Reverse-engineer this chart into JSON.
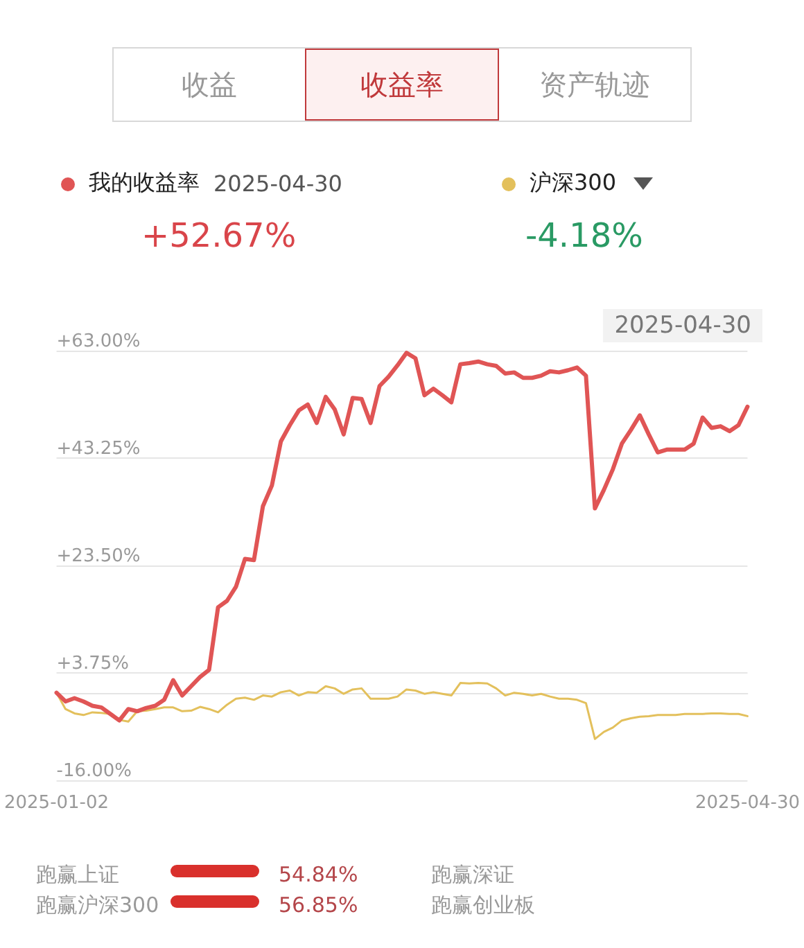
{
  "chart_data": {
    "type": "line",
    "categories": [
      "2025-01-02",
      null,
      null,
      null,
      null,
      null,
      null,
      null,
      null,
      null,
      null,
      null,
      null,
      null,
      null,
      null,
      null,
      null,
      null,
      null,
      null,
      null,
      null,
      null,
      null,
      null,
      null,
      null,
      null,
      null,
      null,
      null,
      null,
      null,
      null,
      null,
      null,
      null,
      null,
      null,
      null,
      null,
      null,
      null,
      null,
      null,
      null,
      null,
      null,
      null,
      null,
      null,
      null,
      null,
      null,
      null,
      null,
      null,
      null,
      null,
      null,
      null,
      null,
      null,
      null,
      null,
      null,
      null,
      null,
      null,
      null,
      null,
      null,
      null,
      null,
      null,
      null,
      "2025-04-30"
    ],
    "series": [
      {
        "name": "我的收益率",
        "color": "#e05555",
        "values": [
          0.1,
          -1.5,
          -0.9,
          -1.5,
          -2.3,
          -2.6,
          -3.8,
          -5.0,
          -2.9,
          -3.3,
          -2.7,
          -2.3,
          -1.2,
          2.4,
          -0.4,
          1.3,
          3.0,
          4.3,
          15.8,
          17.0,
          19.6,
          24.7,
          24.5,
          34.4,
          38.2,
          46.3,
          49.3,
          52.0,
          53.1,
          49.7,
          54.5,
          52.2,
          47.6,
          54.3,
          54.1,
          49.7,
          56.5,
          58.2,
          60.3,
          62.6,
          61.6,
          54.8,
          56.0,
          54.8,
          53.5,
          60.5,
          60.7,
          61.0,
          60.5,
          60.2,
          58.8,
          59.0,
          58.0,
          58.0,
          58.4,
          59.2,
          59.0,
          59.4,
          59.9,
          58.4,
          34.0,
          37.4,
          41.2,
          45.9,
          48.4,
          51.1,
          47.6,
          44.3,
          44.8,
          44.8,
          44.8,
          45.9,
          50.7,
          48.8,
          49.1,
          48.2,
          49.3,
          52.7
        ]
      },
      {
        "name": "沪深300",
        "color": "#e3c05c",
        "values": [
          0.1,
          -2.9,
          -3.7,
          -4.0,
          -3.5,
          -3.6,
          -3.8,
          -4.9,
          -5.2,
          -3.3,
          -3.2,
          -2.9,
          -2.6,
          -2.6,
          -3.3,
          -3.2,
          -2.5,
          -2.9,
          -3.5,
          -2.1,
          -1.0,
          -0.8,
          -1.2,
          -0.4,
          -0.6,
          0.2,
          0.5,
          -0.4,
          0.2,
          0.1,
          1.3,
          0.9,
          -0.1,
          0.7,
          0.9,
          -1.0,
          -1.0,
          -1.0,
          -0.6,
          0.7,
          0.5,
          -0.1,
          0.2,
          -0.1,
          -0.4,
          1.9,
          1.8,
          1.9,
          1.8,
          0.9,
          -0.4,
          0.1,
          -0.1,
          -0.4,
          -0.1,
          -0.6,
          -1.0,
          -1.0,
          -1.2,
          -1.8,
          -8.4,
          -7.1,
          -6.3,
          -5.0,
          -4.6,
          -4.3,
          -4.2,
          -4.0,
          -4.0,
          -4.0,
          -3.8,
          -3.8,
          -3.8,
          -3.7,
          -3.7,
          -3.8,
          -3.8,
          -4.2
        ]
      }
    ],
    "ylim": [
      -16,
      63
    ],
    "yticks": [
      {
        "value": -16,
        "label": "-16.00%"
      },
      {
        "value": 3.75,
        "label": "+3.75%"
      },
      {
        "value": 23.5,
        "label": "+23.50%"
      },
      {
        "value": 43.25,
        "label": "+43.25%"
      },
      {
        "value": 63,
        "label": "+63.00%"
      }
    ],
    "grid": "y",
    "legend": "top",
    "marker": "none",
    "line_style": "solid",
    "annotations": [
      "收益",
      "收益率",
      "资产轨迹",
      "2025-04-30",
      "+52.67%",
      "-4.18%",
      "2025-04-30",
      "跑赢上证",
      "54.84%",
      "跑赢沪深300",
      "56.85%",
      "跑赢深证",
      "跑赢创业板"
    ]
  }
}
